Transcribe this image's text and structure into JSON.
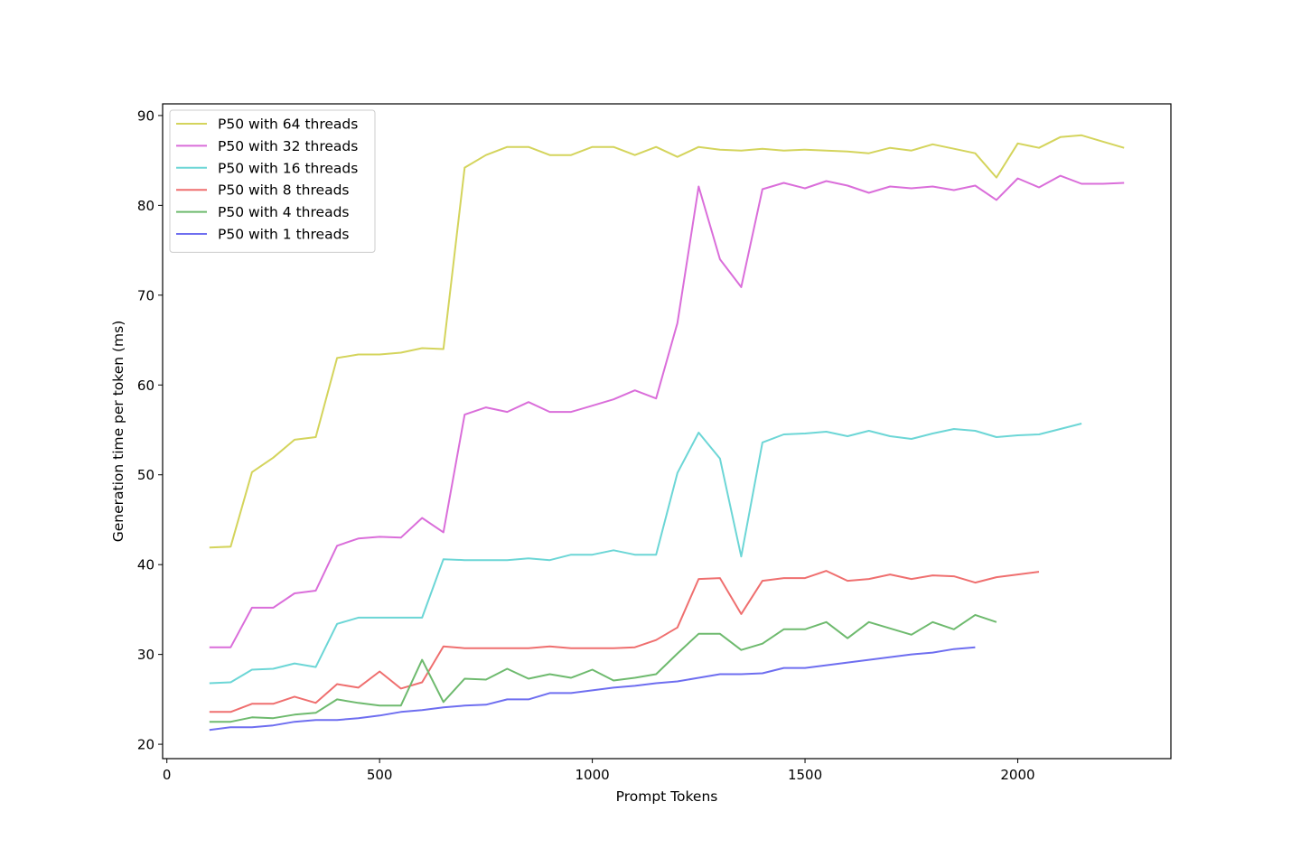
{
  "chart_data": {
    "type": "line",
    "title": "",
    "xlabel": "Prompt Tokens",
    "ylabel": "Generation time per token (ms)",
    "xlim": [
      -10,
      2360
    ],
    "ylim": [
      18.4,
      91.3
    ],
    "xticks": [
      0,
      500,
      1000,
      1500,
      2000
    ],
    "yticks": [
      20,
      30,
      40,
      50,
      60,
      70,
      80,
      90
    ],
    "grid": false,
    "legend_position": "top-left",
    "series": [
      {
        "name": "P50 with 64 threads",
        "color": "#d4d45c",
        "x": [
          100,
          150,
          200,
          250,
          300,
          350,
          400,
          450,
          500,
          550,
          600,
          650,
          700,
          750,
          800,
          850,
          900,
          950,
          1000,
          1050,
          1100,
          1150,
          1200,
          1250,
          1300,
          1350,
          1400,
          1450,
          1500,
          1550,
          1600,
          1650,
          1700,
          1750,
          1800,
          1850,
          1900,
          1950,
          2000,
          2050,
          2100,
          2150,
          2200,
          2250
        ],
        "y": [
          41.9,
          42.0,
          50.3,
          51.9,
          53.9,
          54.2,
          63.0,
          63.4,
          63.4,
          63.6,
          64.1,
          64.0,
          84.2,
          85.6,
          86.5,
          86.5,
          85.6,
          85.6,
          86.5,
          86.5,
          85.6,
          86.5,
          85.4,
          86.5,
          86.2,
          86.1,
          86.3,
          86.1,
          86.2,
          86.1,
          86.0,
          85.8,
          86.4,
          86.1,
          86.8,
          86.3,
          85.8,
          83.1,
          86.9,
          86.4,
          87.6,
          87.8,
          87.1,
          86.4
        ]
      },
      {
        "name": "P50 with 32 threads",
        "color": "#da6eda",
        "x": [
          100,
          150,
          200,
          250,
          300,
          350,
          400,
          450,
          500,
          550,
          600,
          650,
          700,
          750,
          800,
          850,
          900,
          950,
          1000,
          1050,
          1100,
          1150,
          1200,
          1250,
          1300,
          1350,
          1400,
          1450,
          1500,
          1550,
          1600,
          1650,
          1700,
          1750,
          1800,
          1850,
          1900,
          1950,
          2000,
          2050,
          2100,
          2150,
          2200,
          2250
        ],
        "y": [
          30.8,
          30.8,
          35.2,
          35.2,
          36.8,
          37.1,
          42.1,
          42.9,
          43.1,
          43.0,
          45.2,
          43.6,
          56.7,
          57.5,
          57.0,
          58.1,
          57.0,
          57.0,
          57.7,
          58.4,
          59.4,
          58.5,
          66.9,
          82.1,
          74.0,
          70.9,
          81.8,
          82.5,
          81.9,
          82.7,
          82.2,
          81.4,
          82.1,
          81.9,
          82.1,
          81.7,
          82.2,
          80.6,
          83.0,
          82.0,
          83.3,
          82.4,
          82.4,
          82.5
        ]
      },
      {
        "name": "P50 with 16 threads",
        "color": "#6cd6d6",
        "x": [
          100,
          150,
          200,
          250,
          300,
          350,
          400,
          450,
          500,
          550,
          600,
          650,
          700,
          750,
          800,
          850,
          900,
          950,
          1000,
          1050,
          1100,
          1150,
          1200,
          1250,
          1300,
          1350,
          1400,
          1450,
          1500,
          1550,
          1600,
          1650,
          1700,
          1750,
          1800,
          1850,
          1900,
          1950,
          2000,
          2050,
          2100,
          2150
        ],
        "y": [
          26.8,
          26.9,
          28.3,
          28.4,
          29.0,
          28.6,
          33.4,
          34.1,
          34.1,
          34.1,
          34.1,
          40.6,
          40.5,
          40.5,
          40.5,
          40.7,
          40.5,
          41.1,
          41.1,
          41.6,
          41.1,
          41.1,
          50.2,
          54.7,
          51.8,
          40.9,
          53.6,
          54.5,
          54.6,
          54.8,
          54.3,
          54.9,
          54.3,
          54.0,
          54.6,
          55.1,
          54.9,
          54.2,
          54.4,
          54.5,
          55.1,
          55.7
        ]
      },
      {
        "name": "P50 with 8 threads",
        "color": "#ef6f6f",
        "x": [
          100,
          150,
          200,
          250,
          300,
          350,
          400,
          450,
          500,
          550,
          600,
          650,
          700,
          750,
          800,
          850,
          900,
          950,
          1000,
          1050,
          1100,
          1150,
          1200,
          1250,
          1300,
          1350,
          1400,
          1450,
          1500,
          1550,
          1600,
          1650,
          1700,
          1750,
          1800,
          1850,
          1900,
          1950,
          2000,
          2050
        ],
        "y": [
          23.6,
          23.6,
          24.5,
          24.5,
          25.3,
          24.6,
          26.7,
          26.3,
          28.1,
          26.2,
          26.9,
          30.9,
          30.7,
          30.7,
          30.7,
          30.7,
          30.9,
          30.7,
          30.7,
          30.7,
          30.8,
          31.6,
          33.0,
          38.4,
          38.5,
          34.5,
          38.2,
          38.5,
          38.5,
          39.3,
          38.2,
          38.4,
          38.9,
          38.4,
          38.8,
          38.7,
          38.0,
          38.6,
          38.9,
          39.2
        ]
      },
      {
        "name": "P50 with 4 threads",
        "color": "#6eba6e",
        "x": [
          100,
          150,
          200,
          250,
          300,
          350,
          400,
          450,
          500,
          550,
          600,
          650,
          700,
          750,
          800,
          850,
          900,
          950,
          1000,
          1050,
          1100,
          1150,
          1200,
          1250,
          1300,
          1350,
          1400,
          1450,
          1500,
          1550,
          1600,
          1650,
          1700,
          1750,
          1800,
          1850,
          1900,
          1950
        ],
        "y": [
          22.5,
          22.5,
          23.0,
          22.9,
          23.3,
          23.5,
          25.0,
          24.6,
          24.3,
          24.3,
          29.4,
          24.7,
          27.3,
          27.2,
          28.4,
          27.3,
          27.8,
          27.4,
          28.3,
          27.1,
          27.4,
          27.8,
          30.1,
          32.3,
          32.3,
          30.5,
          31.2,
          32.8,
          32.8,
          33.6,
          31.8,
          33.6,
          32.9,
          32.2,
          33.6,
          32.8,
          34.4,
          33.6
        ]
      },
      {
        "name": "P50 with 1 threads",
        "color": "#6e6ef0",
        "x": [
          100,
          150,
          200,
          250,
          300,
          350,
          400,
          450,
          500,
          550,
          600,
          650,
          700,
          750,
          800,
          850,
          900,
          950,
          1000,
          1050,
          1100,
          1150,
          1200,
          1250,
          1300,
          1350,
          1400,
          1450,
          1500,
          1550,
          1600,
          1650,
          1700,
          1750,
          1800,
          1850,
          1900
        ],
        "y": [
          21.6,
          21.9,
          21.9,
          22.1,
          22.5,
          22.7,
          22.7,
          22.9,
          23.2,
          23.6,
          23.8,
          24.1,
          24.3,
          24.4,
          25.0,
          25.0,
          25.7,
          25.7,
          26.0,
          26.3,
          26.5,
          26.8,
          27.0,
          27.4,
          27.8,
          27.8,
          27.9,
          28.5,
          28.5,
          28.8,
          29.1,
          29.4,
          29.7,
          30.0,
          30.2,
          30.6,
          30.8
        ]
      }
    ]
  }
}
